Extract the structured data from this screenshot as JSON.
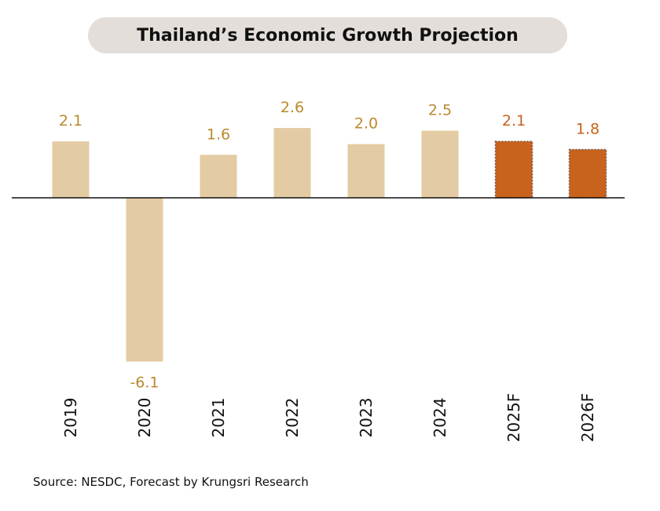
{
  "chart_data": {
    "type": "bar",
    "title": "Thailand’s Economic Growth Projection",
    "categories": [
      "2019",
      "2020",
      "2021",
      "2022",
      "2023",
      "2024",
      "2025F",
      "2026F"
    ],
    "values": [
      2.1,
      -6.1,
      1.6,
      2.6,
      2.0,
      2.5,
      2.1,
      1.8
    ],
    "value_labels": [
      "2.1",
      "-6.1",
      "1.6",
      "2.6",
      "2.0",
      "2.5",
      "2.1",
      "1.8"
    ],
    "forecast": [
      false,
      false,
      false,
      false,
      false,
      false,
      true,
      true
    ],
    "colors": {
      "actual": "#e3cba3",
      "forecast": "#c8621c",
      "label": "#b98a2e",
      "forecast_label": "#c8621c"
    },
    "xlabel": "",
    "ylabel": "",
    "grid": false
  },
  "source": "Source: NESDC, Forecast by Krungsri Research"
}
